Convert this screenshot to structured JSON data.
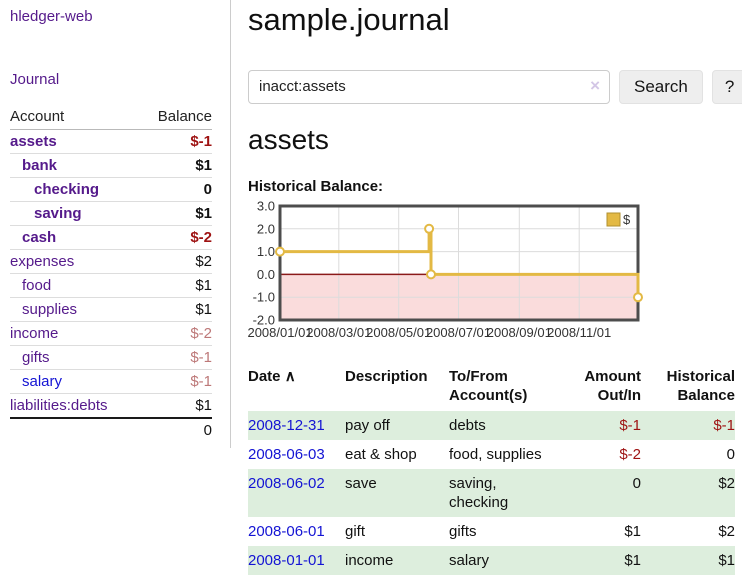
{
  "app": {
    "title": "hledger-web"
  },
  "sidebar": {
    "journal_link": "Journal",
    "accounts_header": {
      "account": "Account",
      "balance": "Balance"
    },
    "accounts": [
      {
        "name": "assets",
        "depth": 0,
        "bold": true,
        "balance": "$-1",
        "balance_style": "negative"
      },
      {
        "name": "bank",
        "depth": 1,
        "bold": true,
        "balance": "$1",
        "balance_style": "normal"
      },
      {
        "name": "checking",
        "depth": 2,
        "bold": true,
        "balance": "0",
        "balance_style": "normal"
      },
      {
        "name": "saving",
        "depth": 2,
        "bold": true,
        "balance": "$1",
        "balance_style": "normal"
      },
      {
        "name": "cash",
        "depth": 1,
        "bold": true,
        "balance": "$-2",
        "balance_style": "negative"
      },
      {
        "name": "expenses",
        "depth": 0,
        "bold": false,
        "balance": "$2",
        "balance_style": "normal"
      },
      {
        "name": "food",
        "depth": 1,
        "bold": false,
        "balance": "$1",
        "balance_style": "normal"
      },
      {
        "name": "supplies",
        "depth": 1,
        "bold": false,
        "balance": "$1",
        "balance_style": "normal"
      },
      {
        "name": "income",
        "depth": 0,
        "bold": false,
        "balance": "$-2",
        "balance_style": "negative-muted"
      },
      {
        "name": "gifts",
        "depth": 1,
        "bold": false,
        "balance": "$-1",
        "balance_style": "negative-muted"
      },
      {
        "name": "salary",
        "depth": 1,
        "bold": false,
        "balance": "$-1",
        "balance_style": "negative-muted",
        "link_color": "blue"
      },
      {
        "name": "liabilities:debts",
        "depth": 0,
        "bold": false,
        "balance": "$1",
        "balance_style": "normal"
      }
    ],
    "total": "0"
  },
  "header": {
    "title": "sample.journal"
  },
  "search": {
    "value": "inacct:assets",
    "clear_icon": "×",
    "button_label": "Search",
    "help_label": "?"
  },
  "account_page": {
    "heading": "assets",
    "chart_title": "Historical Balance:"
  },
  "chart_data": {
    "type": "line",
    "title": "Historical Balance",
    "series": [
      {
        "name": "$",
        "color": "#e3b944",
        "step": true,
        "points": [
          [
            "2008-01-01",
            1
          ],
          [
            "2008-06-01",
            2
          ],
          [
            "2008-06-03",
            0
          ],
          [
            "2008-12-31",
            -1
          ]
        ]
      }
    ],
    "x_range": [
      "2008-01-01",
      "2008-12-31"
    ],
    "x_ticks": [
      "2008/01/01",
      "2008/03/01",
      "2008/05/01",
      "2008/07/01",
      "2008/09/01",
      "2008/11/01"
    ],
    "y_ticks": [
      "3.0",
      "2.0",
      "1.0",
      "0.0",
      "-1.0",
      "-2.0"
    ],
    "ylim": [
      -2,
      3
    ],
    "grid": true,
    "negative_region_color": "#fadcdc",
    "zero_line_color": "#8b1a1a",
    "border_color": "#4d4d4d",
    "grid_color": "#dcdcdc",
    "legend": {
      "label": "$",
      "position": "top-right"
    }
  },
  "register": {
    "columns": [
      "Date",
      "Description",
      "To/From Account(s)",
      "Amount Out/In",
      "Historical Balance"
    ],
    "sort_icon": "∧",
    "rows": [
      {
        "date": "2008-12-31",
        "description": "pay off",
        "accounts": "debts",
        "amount": "$-1",
        "amount_style": "negative",
        "balance": "$-1",
        "balance_style": "negative",
        "shaded": true
      },
      {
        "date": "2008-06-03",
        "description": "eat & shop",
        "accounts": "food, supplies",
        "amount": "$-2",
        "amount_style": "negative",
        "balance": "0",
        "balance_style": "normal",
        "shaded": false
      },
      {
        "date": "2008-06-02",
        "description": "save",
        "accounts": "saving, checking",
        "amount": "0",
        "amount_style": "normal",
        "balance": "$2",
        "balance_style": "normal",
        "shaded": true
      },
      {
        "date": "2008-06-01",
        "description": "gift",
        "accounts": "gifts",
        "amount": "$1",
        "amount_style": "normal",
        "balance": "$2",
        "balance_style": "normal",
        "shaded": false
      },
      {
        "date": "2008-01-01",
        "description": "income",
        "accounts": "salary",
        "amount": "$1",
        "amount_style": "normal",
        "balance": "$1",
        "balance_style": "normal",
        "shaded": true
      }
    ]
  },
  "colors": {
    "link_purple": "#551a8b",
    "link_blue": "#1414d4",
    "negative_strong": "#9e1212",
    "negative_muted": "#bd7878",
    "row_stripe_green": "#ddeedd",
    "chart_gold": "#e3b944",
    "chart_negative_region": "#fadcdc"
  }
}
